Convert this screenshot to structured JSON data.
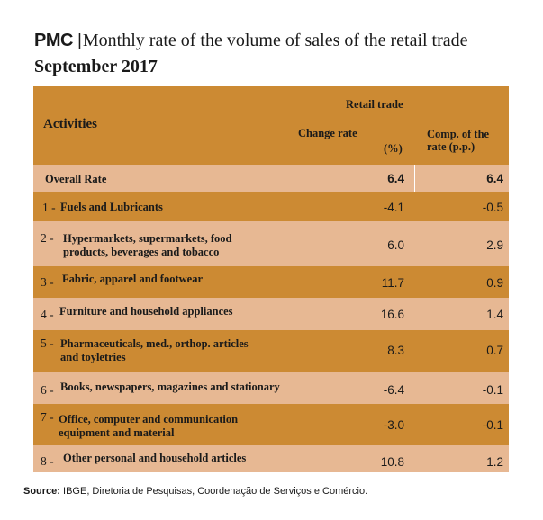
{
  "header": {
    "brand": "PMC",
    "separator": "|",
    "title": "Monthly rate of the volume of sales of the retail trade",
    "subtitle": "September 2017"
  },
  "columns": {
    "activities": "Activities",
    "retail_trade": "Retail trade",
    "change_rate": "Change rate",
    "change_unit": "(%)",
    "comp_line1": "Comp. of the",
    "comp_line2": "rate (p.p.)"
  },
  "overall": {
    "label": "Overall Rate",
    "change": "6.4",
    "comp": "6.4"
  },
  "rows": [
    {
      "num": "1 -",
      "label1": "Fuels and Lubricants",
      "label2": "",
      "change": "-4.1",
      "comp": "-0.5"
    },
    {
      "num": "2 -",
      "label1": "Hypermarkets, supermarkets, food",
      "label2": "products, beverages and tobacco",
      "change": "6.0",
      "comp": "2.9"
    },
    {
      "num": "3 -",
      "label1": "Fabric, apparel and footwear",
      "label2": "",
      "change": "11.7",
      "comp": "0.9"
    },
    {
      "num": "4 -",
      "label1": "Furniture and household appliances",
      "label2": "",
      "change": "16.6",
      "comp": "1.4"
    },
    {
      "num": "5 -",
      "label1": "Pharmaceuticals, med., orthop. articles",
      "label2": "and toyletries",
      "change": "8.3",
      "comp": "0.7"
    },
    {
      "num": "6 -",
      "label1": "Books, newspapers, magazines and stationary",
      "label2": "",
      "change": "-6.4",
      "comp": "-0.1"
    },
    {
      "num": "7 -",
      "label1": "Office, computer and communication",
      "label2": "equipment and material",
      "change": "-3.0",
      "comp": "-0.1"
    },
    {
      "num": "8 -",
      "label1": "Other personal and household articles",
      "label2": "",
      "change": "10.8",
      "comp": "1.2"
    }
  ],
  "source": {
    "label": "Source:",
    "text": "IBGE, Diretoria de Pesquisas, Coordenação de Serviços e Comércio."
  }
}
